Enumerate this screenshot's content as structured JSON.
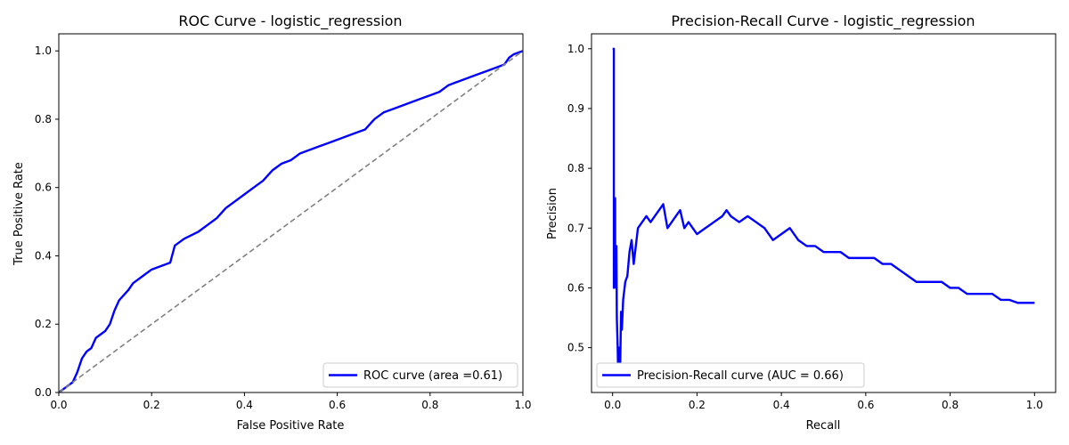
{
  "chart_data": [
    {
      "type": "line",
      "title": "ROC Curve - logistic_regression",
      "xlabel": "False Positive Rate",
      "ylabel": "True Positive Rate",
      "xlim": [
        0.0,
        1.0
      ],
      "ylim": [
        0.0,
        1.05
      ],
      "xticks": [
        "0.0",
        "0.2",
        "0.4",
        "0.6",
        "0.8",
        "1.0"
      ],
      "yticks": [
        "0.0",
        "0.2",
        "0.4",
        "0.6",
        "0.8",
        "1.0"
      ],
      "grid": false,
      "legend_position": "lower-right",
      "series": [
        {
          "name": "ROC curve (area =0.61)",
          "color": "#0000ff",
          "style": "solid",
          "x": [
            0.0,
            0.01,
            0.02,
            0.03,
            0.04,
            0.045,
            0.05,
            0.06,
            0.07,
            0.08,
            0.09,
            0.1,
            0.11,
            0.12,
            0.13,
            0.15,
            0.16,
            0.18,
            0.2,
            0.22,
            0.24,
            0.25,
            0.27,
            0.3,
            0.32,
            0.34,
            0.36,
            0.38,
            0.4,
            0.42,
            0.44,
            0.46,
            0.48,
            0.5,
            0.52,
            0.54,
            0.56,
            0.58,
            0.6,
            0.62,
            0.64,
            0.66,
            0.68,
            0.7,
            0.72,
            0.74,
            0.76,
            0.78,
            0.8,
            0.82,
            0.84,
            0.86,
            0.88,
            0.9,
            0.92,
            0.94,
            0.96,
            0.97,
            0.98,
            1.0
          ],
          "y": [
            0.0,
            0.01,
            0.02,
            0.03,
            0.06,
            0.08,
            0.1,
            0.12,
            0.13,
            0.16,
            0.17,
            0.18,
            0.2,
            0.24,
            0.27,
            0.3,
            0.32,
            0.34,
            0.36,
            0.37,
            0.38,
            0.43,
            0.45,
            0.47,
            0.49,
            0.51,
            0.54,
            0.56,
            0.58,
            0.6,
            0.62,
            0.65,
            0.67,
            0.68,
            0.7,
            0.71,
            0.72,
            0.73,
            0.74,
            0.75,
            0.76,
            0.77,
            0.8,
            0.82,
            0.83,
            0.84,
            0.85,
            0.86,
            0.87,
            0.88,
            0.9,
            0.91,
            0.92,
            0.93,
            0.94,
            0.95,
            0.96,
            0.98,
            0.99,
            1.0
          ]
        },
        {
          "name": "",
          "color": "#808080",
          "style": "dashed",
          "x": [
            0.0,
            1.0
          ],
          "y": [
            0.0,
            1.0
          ]
        }
      ]
    },
    {
      "type": "line",
      "title": "Precision-Recall Curve - logistic_regression",
      "xlabel": "Recall",
      "ylabel": "Precision",
      "xlim": [
        -0.05,
        1.05
      ],
      "ylim": [
        0.425,
        1.025
      ],
      "xticks": [
        "0.0",
        "0.2",
        "0.4",
        "0.6",
        "0.8",
        "1.0"
      ],
      "yticks": [
        "0.5",
        "0.6",
        "0.7",
        "0.8",
        "0.9",
        "1.0"
      ],
      "grid": false,
      "legend_position": "lower-left",
      "series": [
        {
          "name": "Precision-Recall curve (AUC = 0.66)",
          "color": "#0000ff",
          "style": "solid",
          "x": [
            0.0,
            0.003,
            0.003,
            0.006,
            0.006,
            0.008,
            0.009,
            0.01,
            0.012,
            0.013,
            0.015,
            0.018,
            0.02,
            0.022,
            0.025,
            0.03,
            0.035,
            0.04,
            0.045,
            0.05,
            0.055,
            0.06,
            0.07,
            0.08,
            0.09,
            0.1,
            0.11,
            0.12,
            0.13,
            0.14,
            0.15,
            0.16,
            0.17,
            0.18,
            0.19,
            0.2,
            0.22,
            0.24,
            0.26,
            0.27,
            0.28,
            0.3,
            0.32,
            0.34,
            0.36,
            0.38,
            0.4,
            0.42,
            0.44,
            0.46,
            0.48,
            0.5,
            0.52,
            0.54,
            0.56,
            0.58,
            0.6,
            0.62,
            0.64,
            0.66,
            0.68,
            0.7,
            0.72,
            0.74,
            0.76,
            0.78,
            0.8,
            0.82,
            0.84,
            0.86,
            0.88,
            0.9,
            0.92,
            0.94,
            0.96,
            0.98,
            1.0
          ],
          "y": [
            1.0,
            1.0,
            0.6,
            0.75,
            0.67,
            0.6,
            0.67,
            0.55,
            0.5,
            0.46,
            0.5,
            0.47,
            0.56,
            0.53,
            0.58,
            0.61,
            0.62,
            0.66,
            0.68,
            0.64,
            0.67,
            0.7,
            0.71,
            0.72,
            0.71,
            0.72,
            0.73,
            0.74,
            0.7,
            0.71,
            0.72,
            0.73,
            0.7,
            0.71,
            0.7,
            0.69,
            0.7,
            0.71,
            0.72,
            0.73,
            0.72,
            0.71,
            0.72,
            0.71,
            0.7,
            0.68,
            0.69,
            0.7,
            0.68,
            0.67,
            0.67,
            0.66,
            0.66,
            0.66,
            0.65,
            0.65,
            0.65,
            0.65,
            0.64,
            0.64,
            0.63,
            0.62,
            0.61,
            0.61,
            0.61,
            0.61,
            0.6,
            0.6,
            0.59,
            0.59,
            0.59,
            0.59,
            0.58,
            0.58,
            0.575,
            0.575,
            0.575
          ]
        }
      ]
    }
  ]
}
